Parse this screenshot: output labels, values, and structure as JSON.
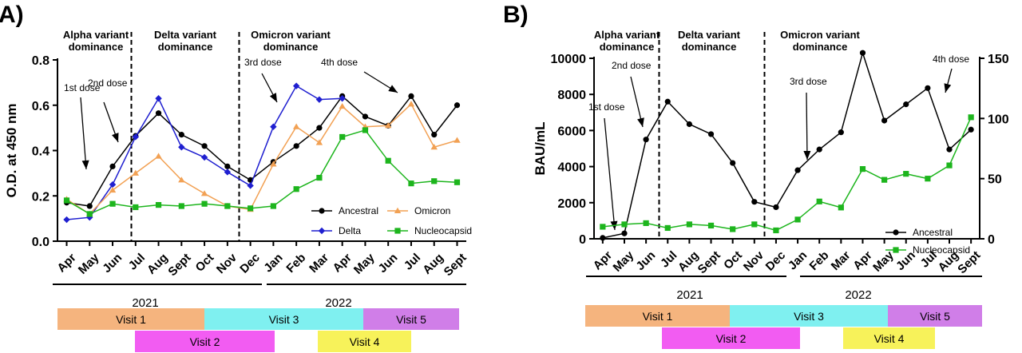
{
  "colors": {
    "ancestral": "#000000",
    "delta": "#1f1fd0",
    "omicron": "#f2a154",
    "nucleocapsid": "#1db51d",
    "visit1": "#f5b47e",
    "visit2": "#f25cf2",
    "visit3": "#7ff0f0",
    "visit4": "#f7f25a",
    "visit5": "#d07ee8"
  },
  "chart_data": [
    {
      "panel": "A)",
      "type": "line",
      "ylabel": "O.D. at 450 nm",
      "ylim": [
        0,
        0.8
      ],
      "yticks": [
        "0.0",
        "0.2",
        "0.4",
        "0.6",
        "0.8"
      ],
      "categories": [
        "Apr",
        "May",
        "Jun",
        "Jul",
        "Aug",
        "Sept",
        "Oct",
        "Nov",
        "Dec",
        "Jan",
        "Feb",
        "Mar",
        "Apr",
        "May",
        "Jun",
        "Jul",
        "Aug",
        "Sept"
      ],
      "series": [
        {
          "name": "Ancestral",
          "marker": "circle",
          "values": [
            0.17,
            0.155,
            0.33,
            0.465,
            0.565,
            0.47,
            0.42,
            0.33,
            0.27,
            0.35,
            0.42,
            0.5,
            0.64,
            0.55,
            0.51,
            0.64,
            0.47,
            0.6
          ]
        },
        {
          "name": "Delta",
          "marker": "diamond",
          "values": [
            0.095,
            0.105,
            0.25,
            0.46,
            0.63,
            0.415,
            0.37,
            0.305,
            0.245,
            0.505,
            0.685,
            0.625,
            0.63,
            null,
            null,
            null,
            null,
            null
          ]
        },
        {
          "name": "Omicron",
          "marker": "triangle",
          "values": [
            0.185,
            0.12,
            0.225,
            0.3,
            0.375,
            0.27,
            0.21,
            0.155,
            0.14,
            0.34,
            0.505,
            0.435,
            0.595,
            0.505,
            0.51,
            0.605,
            0.415,
            0.445
          ]
        },
        {
          "name": "Nucleocapsid",
          "marker": "square",
          "values": [
            0.18,
            0.12,
            0.165,
            0.15,
            0.16,
            0.155,
            0.165,
            0.155,
            0.145,
            0.155,
            0.23,
            0.28,
            0.46,
            0.49,
            0.355,
            0.255,
            0.265,
            0.26
          ]
        }
      ],
      "eras": [
        {
          "line1": "Alpha variant",
          "line2": "dominance"
        },
        {
          "line1": "Delta variant",
          "line2": "dominance"
        },
        {
          "line1": "Omicron variant",
          "line2": "dominance"
        }
      ],
      "doses": [
        "1st dose",
        "2nd dose",
        "3rd dose",
        "4th dose"
      ],
      "years": [
        "2021",
        "2022"
      ],
      "visits": [
        "Visit 1",
        "Visit 2",
        "Visit 3",
        "Visit 4",
        "Visit 5"
      ],
      "legend": "inside, bottom-right"
    },
    {
      "panel": "B)",
      "type": "line",
      "ylabel": "BAU/mL",
      "ylim": [
        0,
        10000
      ],
      "yticks": [
        "0",
        "2000",
        "4000",
        "6000",
        "8000",
        "10000"
      ],
      "y2lim": [
        0,
        150
      ],
      "y2ticks": [
        "0",
        "50",
        "100",
        "150"
      ],
      "categories": [
        "Apr",
        "May",
        "Jun",
        "Jul",
        "Aug",
        "Sept",
        "Oct",
        "Nov",
        "Dec",
        "Jan",
        "Feb",
        "Mar",
        "Apr",
        "May",
        "Jun",
        "Jul",
        "Aug",
        "Sept"
      ],
      "series": [
        {
          "name": "Ancestral",
          "marker": "circle",
          "axis": "left",
          "values": [
            50,
            300,
            5500,
            7600,
            6350,
            5800,
            4200,
            2050,
            1750,
            3800,
            4950,
            5900,
            10300,
            6550,
            7450,
            8350,
            4950,
            6050
          ]
        },
        {
          "name": "Nucleocapsid",
          "marker": "square",
          "axis": "right",
          "values": [
            10,
            12,
            13,
            9,
            12,
            11,
            8,
            12,
            7,
            16,
            31,
            26,
            58,
            49,
            54,
            50,
            61,
            101
          ]
        }
      ],
      "eras": [
        {
          "line1": "Alpha variant",
          "line2": "dominance"
        },
        {
          "line1": "Delta variant",
          "line2": "dominance"
        },
        {
          "line1": "Omicron variant",
          "line2": "dominance"
        }
      ],
      "doses": [
        "1st dose",
        "2nd dose",
        "3rd dose",
        "4th dose"
      ],
      "years": [
        "2021",
        "2022"
      ],
      "visits": [
        "Visit 1",
        "Visit 2",
        "Visit 3",
        "Visit 4",
        "Visit 5"
      ],
      "legend": "inside, bottom-right"
    }
  ]
}
